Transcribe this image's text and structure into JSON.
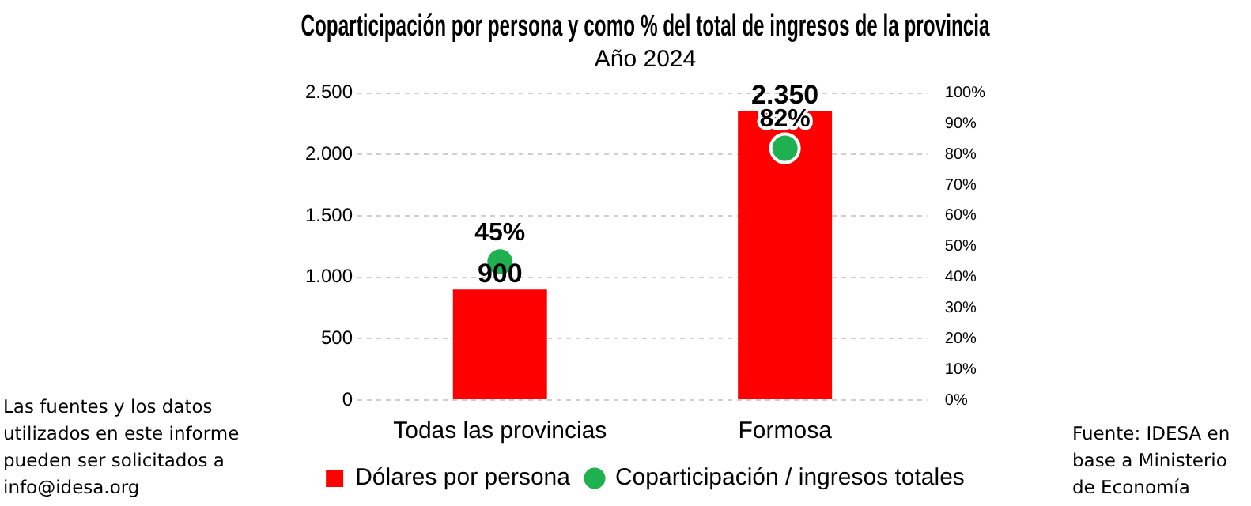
{
  "chart_data": {
    "type": "bar",
    "title": "Coparticipación por persona y como % del total de ingresos de la provincia",
    "subtitle": "Año 2024",
    "categories": [
      "Todas las provincias",
      "Formosa"
    ],
    "series": [
      {
        "name": "Dólares por persona",
        "color": "#ff0000",
        "values": [
          900,
          2350
        ],
        "value_labels": [
          "900",
          "2.350"
        ]
      },
      {
        "name": "Coparticipación / ingresos totales",
        "type": "scatter",
        "axis": "y2",
        "color": "#1fb14f",
        "values": [
          45,
          82
        ],
        "value_labels": [
          "45%",
          "82%"
        ]
      }
    ],
    "ylim": [
      0,
      2500
    ],
    "yticks": [
      0,
      500,
      {
        "value": 1000,
        "label": "1.000"
      },
      {
        "value": 1500,
        "label": "1.500"
      },
      {
        "value": 2000,
        "label": "2.000"
      },
      {
        "value": 2500,
        "label": "2.500"
      }
    ],
    "y2lim": [
      0,
      100
    ],
    "y2ticks": [
      {
        "value": 0,
        "label": "0%"
      },
      {
        "value": 10,
        "label": "10%"
      },
      {
        "value": 20,
        "label": "20%"
      },
      {
        "value": 30,
        "label": "30%"
      },
      {
        "value": 40,
        "label": "40%"
      },
      {
        "value": 50,
        "label": "50%"
      },
      {
        "value": 60,
        "label": "60%"
      },
      {
        "value": 70,
        "label": "70%"
      },
      {
        "value": 80,
        "label": "80%"
      },
      {
        "value": 90,
        "label": "90%"
      },
      {
        "value": 100,
        "label": "100%"
      }
    ],
    "grid": "y",
    "legend": "bottom",
    "marker": "circle",
    "annotations": [
      "Las fuentes y los datos utilizados en este informe pueden ser solicitados a info@idesa.org",
      "Fuente: IDESA en base a Ministerio de Economía"
    ]
  }
}
